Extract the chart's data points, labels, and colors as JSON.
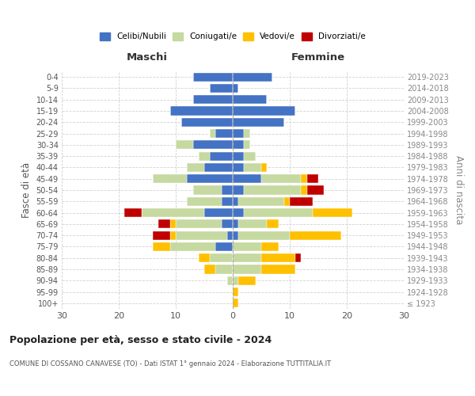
{
  "age_groups": [
    "100+",
    "95-99",
    "90-94",
    "85-89",
    "80-84",
    "75-79",
    "70-74",
    "65-69",
    "60-64",
    "55-59",
    "50-54",
    "45-49",
    "40-44",
    "35-39",
    "30-34",
    "25-29",
    "20-24",
    "15-19",
    "10-14",
    "5-9",
    "0-4"
  ],
  "birth_years": [
    "≤ 1923",
    "1924-1928",
    "1929-1933",
    "1934-1938",
    "1939-1943",
    "1944-1948",
    "1949-1953",
    "1954-1958",
    "1959-1963",
    "1964-1968",
    "1969-1973",
    "1974-1978",
    "1979-1983",
    "1984-1988",
    "1989-1993",
    "1994-1998",
    "1999-2003",
    "2004-2008",
    "2009-2013",
    "2014-2018",
    "2019-2023"
  ],
  "maschi": {
    "celibi": [
      0,
      0,
      0,
      0,
      0,
      3,
      1,
      2,
      5,
      2,
      2,
      8,
      5,
      4,
      7,
      3,
      9,
      11,
      7,
      4,
      7
    ],
    "coniugati": [
      0,
      0,
      1,
      3,
      4,
      8,
      9,
      8,
      11,
      6,
      5,
      6,
      3,
      2,
      3,
      1,
      0,
      0,
      0,
      0,
      0
    ],
    "vedovi": [
      0,
      0,
      0,
      2,
      2,
      3,
      1,
      1,
      0,
      0,
      0,
      0,
      0,
      0,
      0,
      0,
      0,
      0,
      0,
      0,
      0
    ],
    "divorziati": [
      0,
      0,
      0,
      0,
      0,
      0,
      3,
      2,
      3,
      0,
      0,
      0,
      0,
      0,
      0,
      0,
      0,
      0,
      0,
      0,
      0
    ]
  },
  "femmine": {
    "nubili": [
      0,
      0,
      0,
      0,
      0,
      0,
      1,
      1,
      2,
      1,
      2,
      5,
      2,
      2,
      2,
      2,
      9,
      11,
      6,
      1,
      7
    ],
    "coniugate": [
      0,
      0,
      1,
      5,
      5,
      5,
      9,
      5,
      12,
      8,
      10,
      7,
      3,
      2,
      1,
      1,
      0,
      0,
      0,
      0,
      0
    ],
    "vedove": [
      1,
      1,
      3,
      6,
      6,
      3,
      9,
      2,
      7,
      1,
      1,
      1,
      1,
      0,
      0,
      0,
      0,
      0,
      0,
      0,
      0
    ],
    "divorziate": [
      0,
      0,
      0,
      0,
      1,
      0,
      0,
      0,
      0,
      4,
      3,
      2,
      0,
      0,
      0,
      0,
      0,
      0,
      0,
      0,
      0
    ]
  },
  "colors": {
    "celibi": "#4472c4",
    "coniugati": "#c5d9a0",
    "vedovi": "#ffc000",
    "divorziati": "#c00000"
  },
  "xlim": 30,
  "title": "Popolazione per età, sesso e stato civile - 2024",
  "subtitle": "COMUNE DI COSSANO CANAVESE (TO) - Dati ISTAT 1° gennaio 2024 - Elaborazione TUTTITALIA.IT",
  "ylabel_left": "Fasce di età",
  "ylabel_right": "Anni di nascita",
  "legend_labels": [
    "Celibi/Nubili",
    "Coniugati/e",
    "Vedovi/e",
    "Divorziati/e"
  ],
  "maschi_label": "Maschi",
  "femmine_label": "Femmine",
  "bg_color": "#ffffff",
  "grid_color": "#cccccc"
}
